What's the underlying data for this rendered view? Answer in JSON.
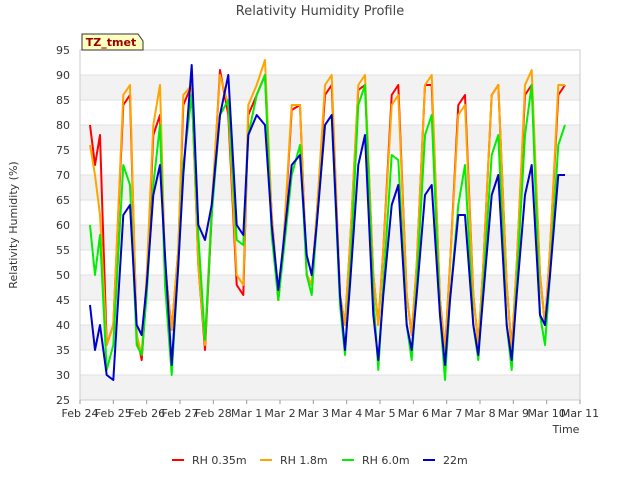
{
  "chart_data": {
    "type": "line",
    "title": "Relativity Humidity Profile",
    "xlabel": "Time",
    "ylabel": "Relativity Humidity (%)",
    "ylim": [
      25,
      95
    ],
    "yticks": [
      25,
      30,
      35,
      40,
      45,
      50,
      55,
      60,
      65,
      70,
      75,
      80,
      85,
      90,
      95
    ],
    "xlim": [
      0,
      15
    ],
    "xtick_labels": [
      "Feb 24",
      "Feb 25",
      "Feb 26",
      "Feb 27",
      "Feb 28",
      "Mar 1",
      "Mar 2",
      "Mar 3",
      "Mar 4",
      "Mar 5",
      "Mar 6",
      "Mar 7",
      "Mar 8",
      "Mar 9",
      "Mar 10",
      "Mar 11"
    ],
    "grid": "horizontal bands",
    "annotation": "TZ_tmet",
    "legend_position": "bottom",
    "series": [
      {
        "name": "RH 0.35m",
        "color": "#ff0000",
        "x": [
          0.3,
          0.45,
          0.6,
          0.8,
          1.0,
          1.3,
          1.5,
          1.7,
          1.85,
          2.0,
          2.2,
          2.4,
          2.55,
          2.75,
          2.95,
          3.1,
          3.35,
          3.55,
          3.75,
          3.95,
          4.2,
          4.45,
          4.7,
          4.9,
          5.05,
          5.3,
          5.55,
          5.75,
          5.95,
          6.1,
          6.35,
          6.6,
          6.8,
          6.95,
          7.1,
          7.35,
          7.55,
          7.8,
          7.95,
          8.1,
          8.35,
          8.55,
          8.8,
          8.95,
          9.1,
          9.35,
          9.55,
          9.8,
          9.95,
          10.1,
          10.35,
          10.55,
          10.8,
          10.95,
          11.1,
          11.35,
          11.55,
          11.8,
          11.95,
          12.1,
          12.35,
          12.55,
          12.8,
          12.95,
          13.1,
          13.35,
          13.55,
          13.8,
          13.95,
          14.1,
          14.35,
          14.55
        ],
        "values": [
          80,
          72,
          78,
          36,
          40,
          84,
          86,
          38,
          33,
          48,
          78,
          82,
          52,
          39,
          55,
          84,
          88,
          52,
          35,
          62,
          91,
          82,
          48,
          46,
          82,
          86,
          90,
          62,
          45,
          55,
          83,
          84,
          50,
          48,
          62,
          86,
          88,
          46,
          40,
          56,
          87,
          88,
          50,
          40,
          55,
          86,
          88,
          46,
          38,
          52,
          88,
          88,
          45,
          35,
          52,
          84,
          86,
          46,
          36,
          52,
          86,
          88,
          48,
          35,
          52,
          86,
          88,
          50,
          40,
          55,
          86,
          88
        ]
      },
      {
        "name": "RH 1.8m",
        "color": "#ffa500",
        "x": [
          0.3,
          0.45,
          0.6,
          0.8,
          1.0,
          1.3,
          1.5,
          1.7,
          1.85,
          2.0,
          2.2,
          2.4,
          2.55,
          2.75,
          2.95,
          3.1,
          3.35,
          3.55,
          3.75,
          3.95,
          4.2,
          4.45,
          4.7,
          4.9,
          5.05,
          5.3,
          5.55,
          5.75,
          5.95,
          6.1,
          6.35,
          6.6,
          6.8,
          6.95,
          7.1,
          7.35,
          7.55,
          7.8,
          7.95,
          8.1,
          8.35,
          8.55,
          8.8,
          8.95,
          9.1,
          9.35,
          9.55,
          9.8,
          9.95,
          10.1,
          10.35,
          10.55,
          10.8,
          10.95,
          11.1,
          11.35,
          11.55,
          11.8,
          11.95,
          12.1,
          12.35,
          12.55,
          12.8,
          12.95,
          13.1,
          13.35,
          13.55,
          13.8,
          13.95,
          14.1,
          14.35,
          14.55
        ],
        "values": [
          76,
          70,
          62,
          36,
          40,
          86,
          88,
          38,
          34,
          50,
          80,
          88,
          52,
          39,
          55,
          86,
          88,
          52,
          36,
          64,
          90,
          84,
          50,
          48,
          84,
          88,
          93,
          62,
          46,
          56,
          84,
          84,
          50,
          48,
          62,
          88,
          90,
          46,
          40,
          56,
          88,
          90,
          50,
          40,
          55,
          84,
          86,
          46,
          38,
          52,
          88,
          90,
          45,
          35,
          52,
          82,
          84,
          46,
          36,
          52,
          86,
          88,
          48,
          35,
          52,
          88,
          91,
          50,
          40,
          55,
          88,
          88
        ]
      },
      {
        "name": "RH 6.0m",
        "color": "#00ee00",
        "x": [
          0.3,
          0.45,
          0.6,
          0.8,
          1.0,
          1.3,
          1.5,
          1.7,
          1.85,
          2.0,
          2.2,
          2.4,
          2.55,
          2.75,
          2.95,
          3.1,
          3.35,
          3.55,
          3.75,
          3.95,
          4.2,
          4.45,
          4.7,
          4.9,
          5.05,
          5.3,
          5.55,
          5.75,
          5.95,
          6.1,
          6.35,
          6.6,
          6.8,
          6.95,
          7.1,
          7.35,
          7.55,
          7.8,
          7.95,
          8.1,
          8.35,
          8.55,
          8.8,
          8.95,
          9.1,
          9.35,
          9.55,
          9.8,
          9.95,
          10.1,
          10.35,
          10.55,
          10.8,
          10.95,
          11.1,
          11.35,
          11.55,
          11.8,
          11.95,
          12.1,
          12.35,
          12.55,
          12.8,
          12.95,
          13.1,
          13.35,
          13.55,
          13.8,
          13.95,
          14.1,
          14.35,
          14.55
        ],
        "values": [
          60,
          50,
          58,
          31,
          36,
          72,
          68,
          36,
          34,
          46,
          68,
          80,
          48,
          30,
          52,
          72,
          86,
          58,
          37,
          62,
          82,
          85,
          57,
          56,
          78,
          86,
          90,
          58,
          45,
          54,
          70,
          76,
          50,
          46,
          60,
          80,
          82,
          44,
          34,
          50,
          84,
          88,
          46,
          31,
          48,
          74,
          73,
          40,
          33,
          48,
          78,
          82,
          42,
          29,
          45,
          64,
          72,
          40,
          33,
          48,
          74,
          78,
          40,
          31,
          48,
          78,
          88,
          42,
          36,
          50,
          76,
          80
        ]
      },
      {
        "name": "22m",
        "color": "#0000cc",
        "x": [
          0.3,
          0.45,
          0.6,
          0.8,
          1.0,
          1.3,
          1.5,
          1.7,
          1.85,
          2.0,
          2.2,
          2.4,
          2.55,
          2.75,
          2.95,
          3.1,
          3.35,
          3.55,
          3.75,
          3.95,
          4.2,
          4.45,
          4.7,
          4.9,
          5.05,
          5.3,
          5.55,
          5.75,
          5.95,
          6.1,
          6.35,
          6.6,
          6.8,
          6.95,
          7.1,
          7.35,
          7.55,
          7.8,
          7.95,
          8.1,
          8.35,
          8.55,
          8.8,
          8.95,
          9.1,
          9.35,
          9.55,
          9.8,
          9.95,
          10.1,
          10.35,
          10.55,
          10.8,
          10.95,
          11.1,
          11.35,
          11.55,
          11.8,
          11.95,
          12.1,
          12.35,
          12.55,
          12.8,
          12.95,
          13.1,
          13.35,
          13.55,
          13.8,
          13.95,
          14.1,
          14.35,
          14.55
        ],
        "values": [
          44,
          35,
          40,
          30,
          29,
          62,
          64,
          40,
          38,
          48,
          66,
          72,
          54,
          32,
          52,
          70,
          92,
          60,
          57,
          64,
          82,
          90,
          60,
          58,
          78,
          82,
          80,
          60,
          47,
          56,
          72,
          74,
          54,
          50,
          60,
          80,
          82,
          46,
          35,
          48,
          72,
          78,
          42,
          33,
          46,
          64,
          68,
          40,
          35,
          46,
          66,
          68,
          42,
          32,
          45,
          62,
          62,
          40,
          34,
          46,
          66,
          70,
          40,
          33,
          46,
          66,
          72,
          42,
          40,
          50,
          70,
          70
        ]
      }
    ]
  }
}
